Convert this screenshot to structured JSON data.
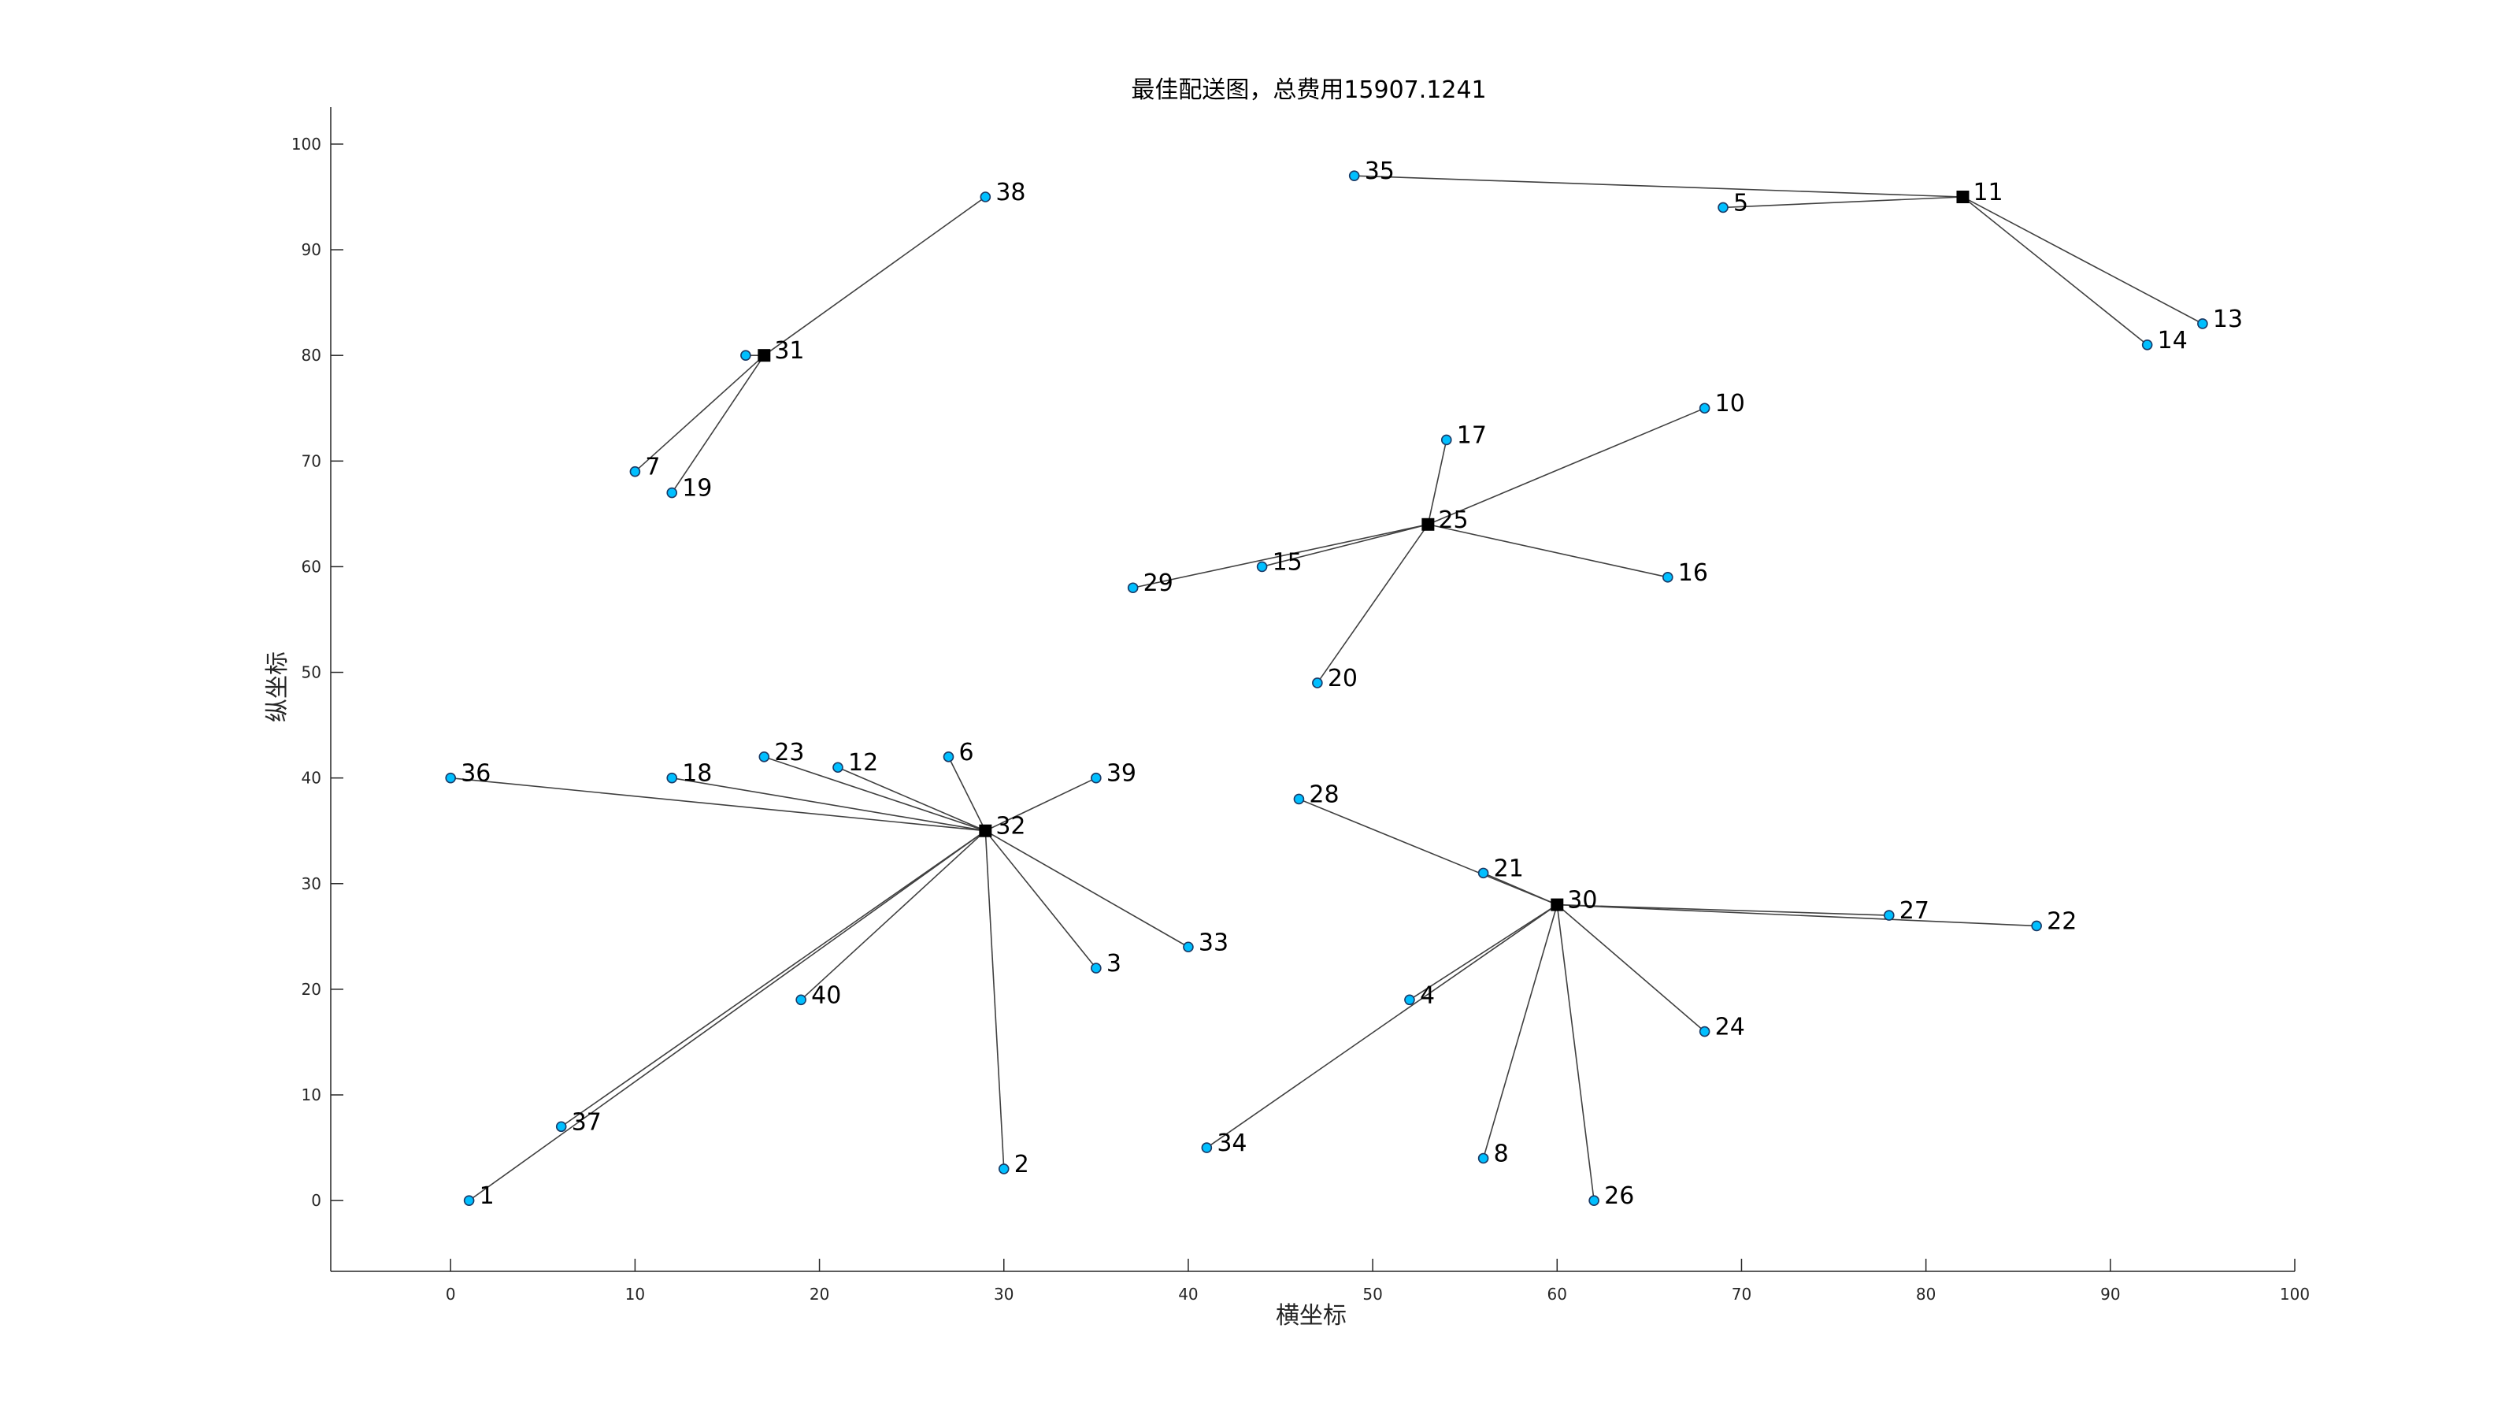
{
  "chart_data": {
    "type": "scatter",
    "title": "最佳配送图，总费用15907.1241",
    "xlabel": "横坐标",
    "ylabel": "纵坐标",
    "xlim": [
      -6.5,
      100
    ],
    "ylim": [
      -6.7,
      103.5
    ],
    "xticks": [
      0,
      10,
      20,
      30,
      40,
      50,
      60,
      70,
      80,
      90,
      100
    ],
    "yticks": [
      0,
      10,
      20,
      30,
      40,
      50,
      60,
      70,
      80,
      90,
      100
    ],
    "grid": false,
    "colors": {
      "customer_fill": "#00bfff",
      "customer_edge": "#1a3a66",
      "depot": "#000000",
      "route_line": "#404040",
      "axis": "#262626"
    },
    "depots": [
      {
        "id": "11",
        "x": 82,
        "y": 95
      },
      {
        "id": "25",
        "x": 53,
        "y": 64
      },
      {
        "id": "30",
        "x": 60,
        "y": 28
      },
      {
        "id": "31",
        "x": 17,
        "y": 80
      },
      {
        "id": "32",
        "x": 29,
        "y": 35
      }
    ],
    "customers": [
      {
        "id": "1",
        "x": 1,
        "y": 0
      },
      {
        "id": "2",
        "x": 30,
        "y": 3
      },
      {
        "id": "3",
        "x": 35,
        "y": 22
      },
      {
        "id": "4",
        "x": 52,
        "y": 19
      },
      {
        "id": "5",
        "x": 69,
        "y": 94
      },
      {
        "id": "6",
        "x": 27,
        "y": 42
      },
      {
        "id": "7",
        "x": 10,
        "y": 69
      },
      {
        "id": "8",
        "x": 56,
        "y": 4
      },
      {
        "id": "9",
        "x": 16,
        "y": 80
      },
      {
        "id": "10",
        "x": 68,
        "y": 75
      },
      {
        "id": "12",
        "x": 21,
        "y": 41
      },
      {
        "id": "13",
        "x": 95,
        "y": 83
      },
      {
        "id": "14",
        "x": 92,
        "y": 81
      },
      {
        "id": "15",
        "x": 44,
        "y": 60
      },
      {
        "id": "16",
        "x": 66,
        "y": 59
      },
      {
        "id": "17",
        "x": 54,
        "y": 72
      },
      {
        "id": "18",
        "x": 12,
        "y": 40
      },
      {
        "id": "19",
        "x": 12,
        "y": 67
      },
      {
        "id": "20",
        "x": 47,
        "y": 49
      },
      {
        "id": "21",
        "x": 56,
        "y": 31
      },
      {
        "id": "22",
        "x": 86,
        "y": 26
      },
      {
        "id": "23",
        "x": 17,
        "y": 42
      },
      {
        "id": "24",
        "x": 68,
        "y": 16
      },
      {
        "id": "26",
        "x": 62,
        "y": 0
      },
      {
        "id": "27",
        "x": 78,
        "y": 27
      },
      {
        "id": "28",
        "x": 46,
        "y": 38
      },
      {
        "id": "29",
        "x": 37,
        "y": 58
      },
      {
        "id": "33",
        "x": 40,
        "y": 24
      },
      {
        "id": "34",
        "x": 41,
        "y": 5
      },
      {
        "id": "35",
        "x": 49,
        "y": 97
      },
      {
        "id": "36",
        "x": 0,
        "y": 40
      },
      {
        "id": "37",
        "x": 6,
        "y": 7
      },
      {
        "id": "38",
        "x": 29,
        "y": 95
      },
      {
        "id": "39",
        "x": 35,
        "y": 40
      },
      {
        "id": "40",
        "x": 19,
        "y": 19
      }
    ],
    "hidden_labels": [
      "9"
    ],
    "routes": [
      [
        "11",
        "35"
      ],
      [
        "11",
        "5"
      ],
      [
        "11",
        "13"
      ],
      [
        "11",
        "14"
      ],
      [
        "31",
        "38"
      ],
      [
        "31",
        "9"
      ],
      [
        "31",
        "7"
      ],
      [
        "31",
        "19"
      ],
      [
        "25",
        "10"
      ],
      [
        "25",
        "17"
      ],
      [
        "25",
        "15"
      ],
      [
        "25",
        "29"
      ],
      [
        "25",
        "16"
      ],
      [
        "25",
        "20"
      ],
      [
        "32",
        "36"
      ],
      [
        "32",
        "18"
      ],
      [
        "32",
        "23"
      ],
      [
        "32",
        "12"
      ],
      [
        "32",
        "6"
      ],
      [
        "32",
        "39"
      ],
      [
        "32",
        "33"
      ],
      [
        "32",
        "3"
      ],
      [
        "32",
        "2"
      ],
      [
        "32",
        "40"
      ],
      [
        "32",
        "37"
      ],
      [
        "32",
        "1"
      ],
      [
        "30",
        "28"
      ],
      [
        "30",
        "21"
      ],
      [
        "30",
        "27"
      ],
      [
        "30",
        "22"
      ],
      [
        "30",
        "24"
      ],
      [
        "30",
        "26"
      ],
      [
        "30",
        "8"
      ],
      [
        "30",
        "4"
      ],
      [
        "30",
        "34"
      ]
    ]
  }
}
